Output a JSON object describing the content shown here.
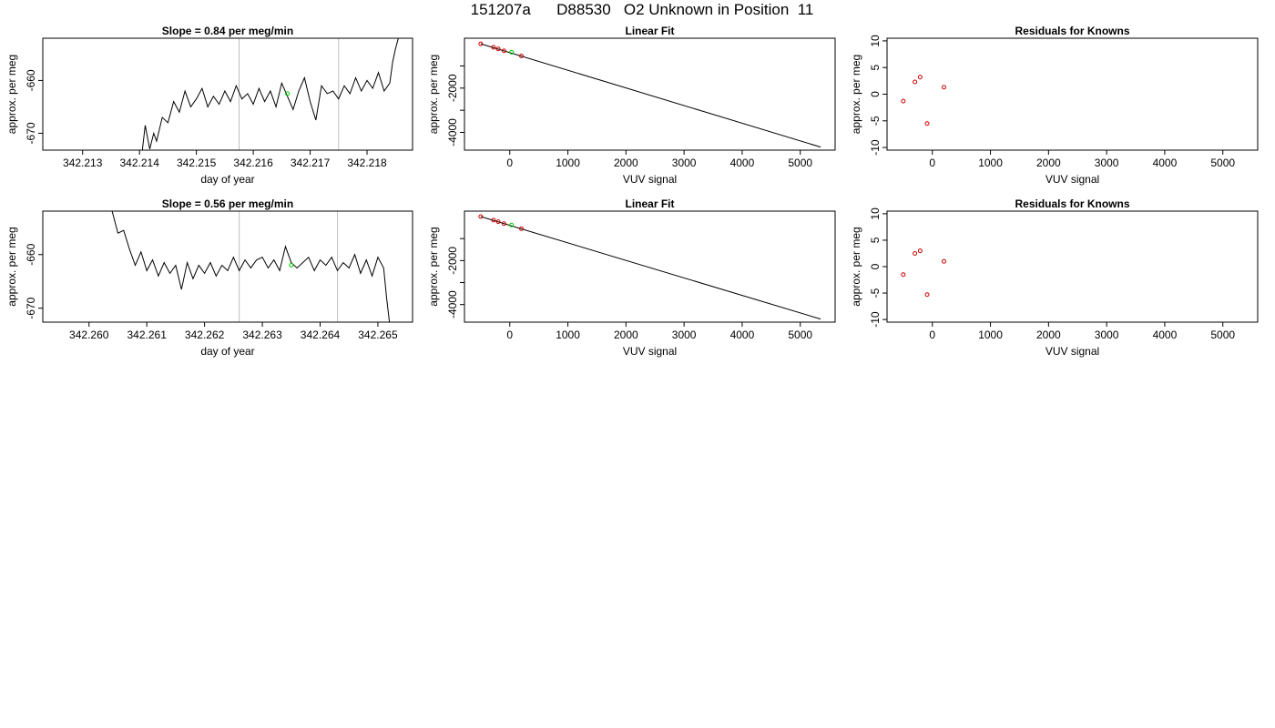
{
  "figure": {
    "title": "151207a      D88530   O2 Unknown in Position  11"
  },
  "colors": {
    "trace": "#000000",
    "marker_green": "#00cc00",
    "known_points": "#cc0000",
    "window_lines": "#bebebe"
  },
  "chart_data": [
    {
      "id": "row1-timeseries",
      "type": "line",
      "title": "Slope =  0.84  per meg/min",
      "xlabel": "day of year",
      "ylabel": "approx. per meg",
      "xlim": [
        342.2123,
        342.2188
      ],
      "ylim": [
        -673.2,
        -652.0
      ],
      "xticks": [
        342.213,
        342.214,
        342.215,
        342.216,
        342.217,
        342.218
      ],
      "xtick_labels": [
        "342.213",
        "342.214",
        "342.215",
        "342.216",
        "342.217",
        "342.218"
      ],
      "yticks": [
        -670,
        -660
      ],
      "ytick_labels": [
        "-670",
        "-660"
      ],
      "vlines": [
        342.21575,
        342.2175
      ],
      "marker": {
        "x": 342.2166,
        "y": -662.5
      },
      "series": [
        {
          "x": [
            342.21405,
            342.2141,
            342.21418,
            342.21425,
            342.2143,
            342.2144,
            342.2145,
            342.2146,
            342.2147,
            342.2148,
            342.2149,
            342.215,
            342.2151,
            342.2152,
            342.2153,
            342.2154,
            342.2155,
            342.2156,
            342.2157,
            342.2158,
            342.2159,
            342.216,
            342.2161,
            342.2162,
            342.2163,
            342.2164,
            342.2165,
            342.2166,
            342.2167,
            342.2168,
            342.2169,
            342.217,
            342.2171,
            342.2172,
            342.2173,
            342.2174,
            342.2175,
            342.2176,
            342.2177,
            342.2178,
            342.2179,
            342.218,
            342.2181,
            342.2182,
            342.2183,
            342.2184,
            342.21845,
            342.2185,
            342.21855
          ],
          "y": [
            -673.2,
            -668.5,
            -673.0,
            -670.0,
            -671.5,
            -667.0,
            -668.0,
            -664.0,
            -666.0,
            -662.0,
            -665.0,
            -663.5,
            -661.5,
            -665.0,
            -663.0,
            -664.5,
            -662.0,
            -664.0,
            -661.0,
            -663.5,
            -662.5,
            -664.5,
            -661.5,
            -664.0,
            -662.0,
            -665.0,
            -660.5,
            -663.0,
            -665.5,
            -662.0,
            -659.5,
            -664.0,
            -667.5,
            -661.0,
            -662.5,
            -662.0,
            -663.5,
            -661.0,
            -662.5,
            -659.5,
            -662.0,
            -660.0,
            -661.5,
            -658.5,
            -662.0,
            -660.5,
            -656.5,
            -654.0,
            -652.0
          ]
        }
      ]
    },
    {
      "id": "row1-linearfit",
      "type": "scatter",
      "title": "Linear Fit",
      "xlabel": "VUV signal",
      "ylabel": "approx. per meg",
      "xlim": [
        -780,
        5600
      ],
      "ylim": [
        -4800,
        250
      ],
      "xticks": [
        0,
        1000,
        2000,
        3000,
        4000,
        5000
      ],
      "xtick_labels": [
        "0",
        "1000",
        "2000",
        "3000",
        "4000",
        "5000"
      ],
      "yticks": [
        -4000,
        -3000,
        -2000,
        -1000
      ],
      "ytick_labels": [
        "-4000",
        "",
        "-2000",
        ""
      ],
      "known_x": [
        -500,
        -280,
        -200,
        -100,
        200
      ],
      "known_y": [
        0,
        -160,
        -230,
        -320,
        -550
      ],
      "marker": {
        "x": 30,
        "y": -380
      },
      "fit_line": {
        "x": [
          -500,
          5350
        ],
        "y": [
          0,
          -4660
        ]
      }
    },
    {
      "id": "row1-residuals",
      "type": "scatter",
      "title": "Residuals for Knowns",
      "xlabel": "VUV signal",
      "ylabel": "approx. per meg",
      "xlim": [
        -780,
        5600
      ],
      "ylim": [
        -10.5,
        10.5
      ],
      "xticks": [
        0,
        1000,
        2000,
        3000,
        4000,
        5000
      ],
      "xtick_labels": [
        "0",
        "1000",
        "2000",
        "3000",
        "4000",
        "5000"
      ],
      "yticks": [
        -10,
        -5,
        0,
        5,
        10
      ],
      "ytick_labels": [
        "-10",
        "-5",
        "0",
        "5",
        "10"
      ],
      "points_x": [
        -500,
        -300,
        -210,
        -90,
        200
      ],
      "points_y": [
        -1.3,
        2.3,
        3.2,
        -5.5,
        1.3
      ]
    },
    {
      "id": "row2-timeseries",
      "type": "line",
      "title": "Slope =  0.56  per meg/min",
      "xlabel": "day of year",
      "ylabel": "approx. per meg",
      "xlim": [
        342.2592,
        342.2656
      ],
      "ylim": [
        -672.6,
        -651.9
      ],
      "xticks": [
        342.26,
        342.261,
        342.262,
        342.263,
        342.264,
        342.265
      ],
      "xtick_labels": [
        "342.260",
        "342.261",
        "342.262",
        "342.263",
        "342.264",
        "342.265"
      ],
      "yticks": [
        -670,
        -660
      ],
      "ytick_labels": [
        "-670",
        "-660"
      ],
      "vlines": [
        342.2626,
        342.2643
      ],
      "marker": {
        "x": 342.2635,
        "y": -662.0
      },
      "series": [
        {
          "x": [
            342.2604,
            342.2605,
            342.2606,
            342.2607,
            342.2608,
            342.2609,
            342.261,
            342.2611,
            342.2612,
            342.2613,
            342.2614,
            342.2615,
            342.2616,
            342.2617,
            342.2618,
            342.2619,
            342.262,
            342.2621,
            342.2622,
            342.2623,
            342.2624,
            342.2625,
            342.2626,
            342.2627,
            342.2628,
            342.2629,
            342.263,
            342.2631,
            342.2632,
            342.2633,
            342.2634,
            342.2635,
            342.2636,
            342.2637,
            342.2638,
            342.2639,
            342.264,
            342.2641,
            342.2642,
            342.2643,
            342.2644,
            342.2645,
            342.2646,
            342.2647,
            342.2648,
            342.2649,
            342.265,
            342.2651,
            342.26515,
            342.2652
          ],
          "y": [
            -651.9,
            -656.0,
            -655.5,
            -659.0,
            -662.0,
            -659.5,
            -663.0,
            -661.0,
            -664.0,
            -661.5,
            -663.5,
            -662.0,
            -666.5,
            -661.5,
            -664.5,
            -662.0,
            -663.5,
            -661.5,
            -664.0,
            -662.0,
            -663.0,
            -660.5,
            -663.0,
            -661.0,
            -662.5,
            -661.0,
            -660.5,
            -662.5,
            -661.0,
            -663.0,
            -658.5,
            -661.5,
            -662.5,
            -661.5,
            -660.5,
            -663.0,
            -661.0,
            -662.0,
            -660.5,
            -663.0,
            -661.5,
            -662.5,
            -660.0,
            -663.5,
            -661.0,
            -664.0,
            -660.5,
            -662.5,
            -668.0,
            -672.6
          ]
        }
      ]
    },
    {
      "id": "row2-linearfit",
      "type": "scatter",
      "title": "Linear Fit",
      "xlabel": "VUV signal",
      "ylabel": "approx. per meg",
      "xlim": [
        -780,
        5600
      ],
      "ylim": [
        -4800,
        250
      ],
      "xticks": [
        0,
        1000,
        2000,
        3000,
        4000,
        5000
      ],
      "xtick_labels": [
        "0",
        "1000",
        "2000",
        "3000",
        "4000",
        "5000"
      ],
      "yticks": [
        -4000,
        -3000,
        -2000,
        -1000
      ],
      "ytick_labels": [
        "-4000",
        "",
        "-2000",
        ""
      ],
      "known_x": [
        -500,
        -280,
        -200,
        -100,
        200
      ],
      "known_y": [
        0,
        -160,
        -230,
        -320,
        -550
      ],
      "marker": {
        "x": 30,
        "y": -380
      },
      "fit_line": {
        "x": [
          -500,
          5350
        ],
        "y": [
          0,
          -4660
        ]
      }
    },
    {
      "id": "row2-residuals",
      "type": "scatter",
      "title": "Residuals for Knowns",
      "xlabel": "VUV signal",
      "ylabel": "approx. per meg",
      "xlim": [
        -780,
        5600
      ],
      "ylim": [
        -10.5,
        10.5
      ],
      "xticks": [
        0,
        1000,
        2000,
        3000,
        4000,
        5000
      ],
      "xtick_labels": [
        "0",
        "1000",
        "2000",
        "3000",
        "4000",
        "5000"
      ],
      "yticks": [
        -10,
        -5,
        0,
        5,
        10
      ],
      "ytick_labels": [
        "-10",
        "-5",
        "0",
        "5",
        "10"
      ],
      "points_x": [
        -500,
        -300,
        -210,
        -90,
        200
      ],
      "points_y": [
        -1.5,
        2.5,
        3.0,
        -5.3,
        1.0
      ]
    }
  ]
}
